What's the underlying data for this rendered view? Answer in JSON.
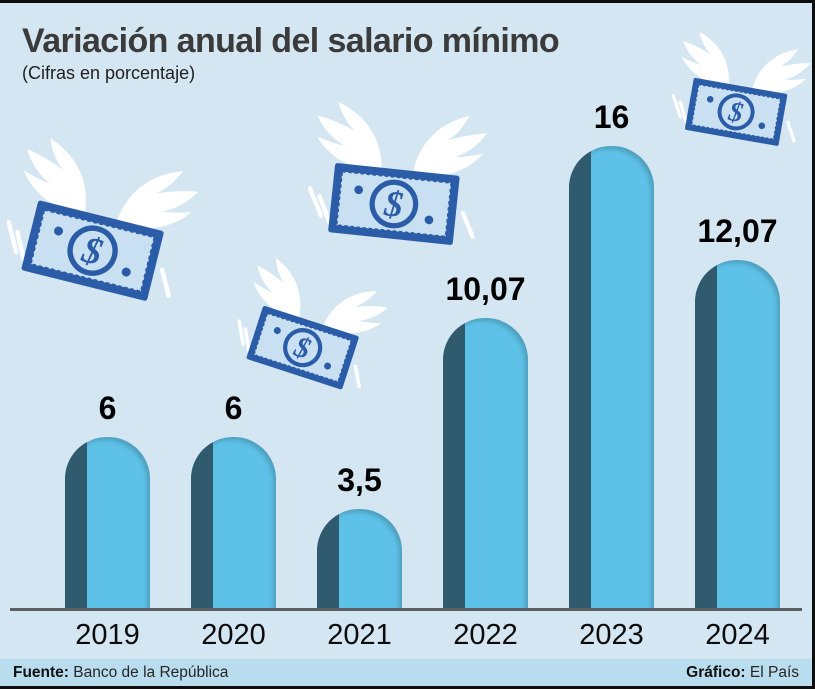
{
  "header": {
    "title": "Variación anual del salario mínimo",
    "subtitle": "(Cifras en porcentaje)"
  },
  "chart_data": {
    "type": "bar",
    "title": "Variación anual del salario mínimo",
    "subtitle": "(Cifras en porcentaje)",
    "categories": [
      "2019",
      "2020",
      "2021",
      "2022",
      "2023",
      "2024"
    ],
    "values": [
      6,
      6,
      3.5,
      10.07,
      16,
      12.07
    ],
    "value_labels": [
      "6",
      "6",
      "3,5",
      "10,07",
      "16",
      "12,07"
    ],
    "unit": "percent",
    "ylim": [
      0,
      16
    ],
    "grid": false,
    "legend": "none",
    "colors": {
      "bar_fill": "#5ec2e8",
      "bar_shadow_side": "#305a6d",
      "background": "#d4e6f2",
      "footer_background": "#b9dcee",
      "axis_line": "#5d6165",
      "title_text": "#3b3b3b",
      "label_text": "#000000",
      "bill_blue": "#2b5ca8",
      "bill_light": "#c9e0f2",
      "wing_white": "#ffffff"
    }
  },
  "decorations": {
    "icon": "flying-money-icon",
    "flying_money_count": 4,
    "dollar_glyph": "$"
  },
  "footer": {
    "source_label": "Fuente:",
    "source_value": "Banco de la República",
    "credit_label": "Gráfico:",
    "credit_value": "El País"
  }
}
